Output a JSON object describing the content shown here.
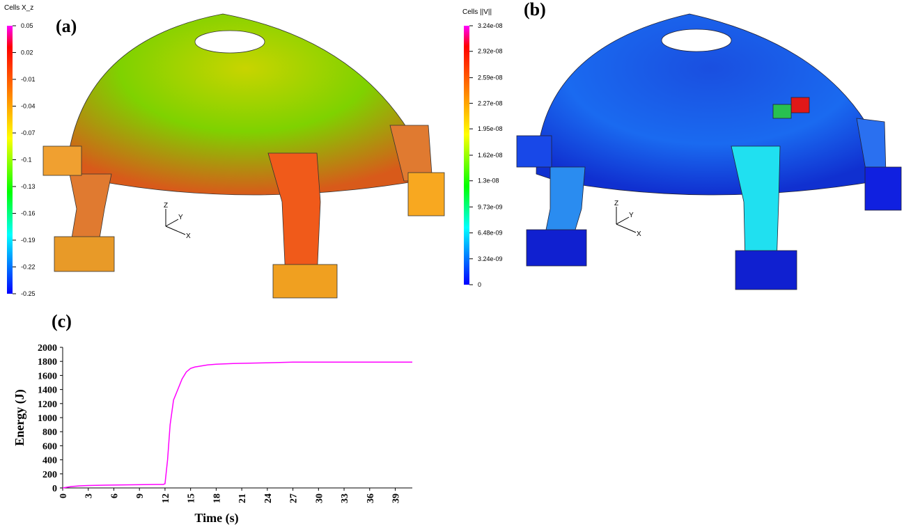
{
  "panels": [
    {
      "label": "(a)",
      "colorbar": {
        "title": "Cells X_z",
        "lim": [
          -0.25,
          0.05
        ],
        "ticks": [
          0.05,
          0.02,
          -0.01,
          -0.04,
          -0.07,
          -0.1,
          -0.13,
          -0.16,
          -0.19,
          -0.22,
          -0.25
        ]
      },
      "axes": [
        "Z",
        "Y",
        "X"
      ]
    },
    {
      "label": "(b)",
      "colorbar": {
        "title": "Cells ||V||",
        "lim": [
          0,
          3.24e-08
        ],
        "ticks": [
          {
            "value": 3.24e-08,
            "label": "3.24e-08"
          },
          {
            "value": 2.92e-08,
            "label": "2.92e-08"
          },
          {
            "value": 2.59e-08,
            "label": "2.59e-08"
          },
          {
            "value": 2.27e-08,
            "label": "2.27e-08"
          },
          {
            "value": 1.95e-08,
            "label": "1.95e-08"
          },
          {
            "value": 1.62e-08,
            "label": "1.62e-08"
          },
          {
            "value": 1.3e-08,
            "label": "1.3e-08"
          },
          {
            "value": 9.73e-09,
            "label": "9.73e-09"
          },
          {
            "value": 6.48e-09,
            "label": "6.48e-09"
          },
          {
            "value": 3.24e-09,
            "label": "3.24e-09"
          },
          0
        ]
      },
      "axes": [
        "Z",
        "Y",
        "X"
      ]
    }
  ],
  "chart_data": {
    "type": "line",
    "label": "(c)",
    "xlabel": "Time (s)",
    "ylabel": "Energy (J)",
    "color": "#ff00ff",
    "x": [
      0,
      0.5,
      1,
      2,
      3,
      5,
      8,
      11,
      11.8,
      12,
      12.3,
      12.6,
      13,
      13.5,
      14,
      14.5,
      15,
      15.5,
      16,
      17,
      18,
      20,
      24,
      27,
      30,
      35,
      41
    ],
    "values": [
      0,
      10,
      20,
      30,
      35,
      40,
      45,
      50,
      50,
      60,
      400,
      900,
      1250,
      1400,
      1550,
      1650,
      1700,
      1720,
      1730,
      1750,
      1760,
      1770,
      1780,
      1790,
      1790,
      1790,
      1790
    ],
    "xlim": [
      0,
      41
    ],
    "ylim": [
      0,
      2000
    ],
    "xticks": [
      0,
      3,
      6,
      9,
      12,
      15,
      18,
      21,
      24,
      27,
      30,
      33,
      36,
      39
    ],
    "yticks": [
      0,
      200,
      400,
      600,
      800,
      1000,
      1200,
      1400,
      1600,
      1800,
      2000
    ]
  }
}
